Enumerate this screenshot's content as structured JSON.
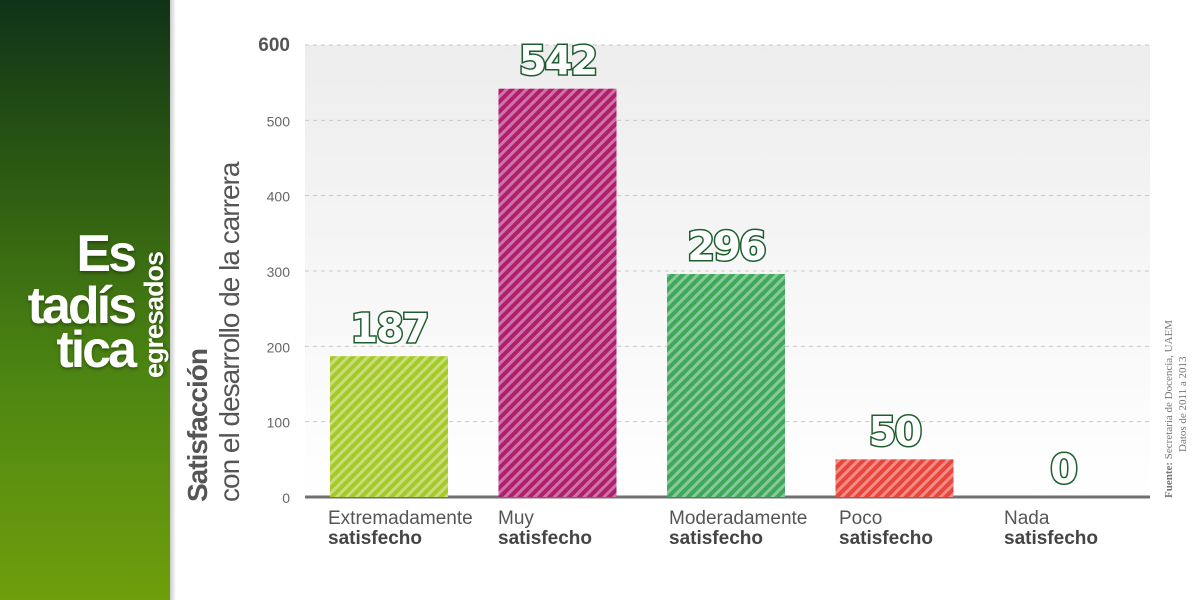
{
  "brand": {
    "line1": "Es",
    "line2": "tadís",
    "line3": "tica",
    "subtitle": "egresados"
  },
  "colors": {
    "sidebar_top": "#0f3318",
    "sidebar_bottom": "#6f9e0c",
    "value_label_fill": "#ffffff",
    "value_label_stroke": "#1e5e2e"
  },
  "source": {
    "label": "Fuente:",
    "text": " Secretaría de Docencia, UAEM",
    "line2": "Datos de 2011 a 2013"
  },
  "chart_data": {
    "type": "bar",
    "ytitle_bold": "Satisfacción",
    "ytitle_regular": "con el desarrollo de la carrera",
    "categories": [
      {
        "line1": "Extremadamente",
        "line2": "satisfecho"
      },
      {
        "line1": "Muy",
        "line2": "satisfecho"
      },
      {
        "line1": "Moderadamente",
        "line2": "satisfecho"
      },
      {
        "line1": "Poco",
        "line2": "satisfecho"
      },
      {
        "line1": "Nada",
        "line2": "satisfecho"
      }
    ],
    "values": [
      187,
      542,
      296,
      50,
      0
    ],
    "value_labels": [
      "187",
      "542",
      "296",
      "50",
      "0"
    ],
    "bar_colors": [
      "#a6c92a",
      "#b01e6e",
      "#3fa85a",
      "#e8453c",
      "#3fa85a"
    ],
    "ylim": [
      0,
      600
    ],
    "yticks": [
      0,
      100,
      200,
      300,
      400,
      500,
      600
    ],
    "grid": true
  }
}
